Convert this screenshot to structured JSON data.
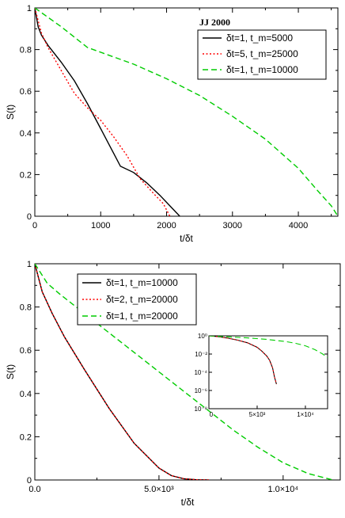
{
  "chart_data": [
    {
      "type": "line",
      "xlabel": "t/δt",
      "ylabel": "S(t)",
      "xlim": [
        0,
        4600
      ],
      "ylim": [
        0,
        1
      ],
      "x_ticks": [
        "0",
        "1000",
        "2000",
        "3000",
        "4000"
      ],
      "y_ticks": [
        "0",
        "0.2",
        "0.4",
        "0.6",
        "0.8",
        "1"
      ],
      "annotation": "JJ 2000",
      "legend_position": "top-right",
      "series": [
        {
          "name": "δt=1, t_m=5000",
          "color": "#000000",
          "style": "solid",
          "x": [
            0,
            50,
            100,
            200,
            400,
            600,
            800,
            1000,
            1100,
            1200,
            1300,
            1500,
            1700,
            1900,
            2050,
            2200
          ],
          "y": [
            1,
            0.91,
            0.87,
            0.82,
            0.74,
            0.65,
            0.54,
            0.42,
            0.36,
            0.3,
            0.24,
            0.21,
            0.16,
            0.1,
            0.05,
            0.0
          ]
        },
        {
          "name": "δt=5, t_m=25000",
          "color": "#ff0000",
          "style": "dotted",
          "x": [
            0,
            100,
            200,
            400,
            600,
            800,
            1000,
            1200,
            1400,
            1600,
            1800,
            1950,
            2050
          ],
          "y": [
            1,
            0.88,
            0.81,
            0.7,
            0.59,
            0.52,
            0.46,
            0.38,
            0.29,
            0.18,
            0.11,
            0.06,
            0.0
          ]
        },
        {
          "name": "δt=1, t_m=10000",
          "color": "#00cc00",
          "style": "dashed",
          "x": [
            0,
            400,
            800,
            1500,
            2000,
            2500,
            3000,
            3500,
            4000,
            4300,
            4500,
            4600
          ],
          "y": [
            1,
            0.91,
            0.81,
            0.73,
            0.66,
            0.58,
            0.48,
            0.37,
            0.23,
            0.12,
            0.05,
            0.0
          ]
        }
      ]
    },
    {
      "type": "line",
      "xlabel": "t/δt",
      "ylabel": "S(t)",
      "xlim": [
        0,
        12300
      ],
      "ylim": [
        0,
        1
      ],
      "x_ticks": [
        "0.0",
        "5.0×10³",
        "1.0×10⁴"
      ],
      "y_ticks": [
        "0",
        "0.2",
        "0.4",
        "0.6",
        "0.8",
        "1"
      ],
      "legend_position": "top-left",
      "series": [
        {
          "name": "δt=1, t_m=10000",
          "color": "#000000",
          "style": "solid",
          "x": [
            0,
            300,
            700,
            1200,
            2000,
            3000,
            4000,
            5000,
            5500,
            6000,
            6500,
            7000
          ],
          "y": [
            1,
            0.87,
            0.77,
            0.66,
            0.51,
            0.33,
            0.17,
            0.055,
            0.02,
            0.006,
            0.001,
            0.0
          ]
        },
        {
          "name": "δt=2, t_m=20000",
          "color": "#ff0000",
          "style": "dotted",
          "x": [
            0,
            300,
            700,
            1200,
            2000,
            3000,
            4000,
            5000,
            5500,
            6000,
            6500,
            7000
          ],
          "y": [
            1,
            0.87,
            0.77,
            0.66,
            0.51,
            0.33,
            0.17,
            0.055,
            0.02,
            0.006,
            0.001,
            0.0
          ]
        },
        {
          "name": "δt=1, t_m=20000",
          "color": "#00cc00",
          "style": "dashed",
          "x": [
            0,
            500,
            1000,
            2000,
            3000,
            4000,
            5000,
            6000,
            7000,
            8000,
            9000,
            10000,
            11000,
            12000
          ],
          "y": [
            1,
            0.91,
            0.86,
            0.77,
            0.68,
            0.59,
            0.5,
            0.41,
            0.32,
            0.23,
            0.15,
            0.08,
            0.03,
            0.0
          ]
        }
      ]
    },
    {
      "type": "line",
      "inset": true,
      "yscale": "log",
      "xlim": [
        0,
        12300
      ],
      "ylim_exponents": [
        -8,
        0
      ],
      "x_ticks": [
        "0",
        "5×10³",
        "1×10⁴"
      ],
      "y_ticks": [
        "10⁰",
        "10⁻²",
        "10⁻⁴",
        "10⁻⁶",
        "10⁻⁸"
      ],
      "series": [
        {
          "color": "#000000",
          "style": "solid",
          "x": [
            0,
            1000,
            2000,
            3000,
            4000,
            5000,
            5500,
            6000,
            6300,
            6600,
            6800,
            7000
          ],
          "y": [
            1,
            0.8,
            0.55,
            0.33,
            0.17,
            0.055,
            0.02,
            0.006,
            0.002,
            0.0003,
            3e-05,
            5e-06
          ]
        },
        {
          "color": "#ff0000",
          "style": "dotted",
          "x": [
            0,
            1000,
            2000,
            3000,
            4000,
            5000,
            5500,
            6000,
            6300,
            6600,
            6800,
            7000
          ],
          "y": [
            1,
            0.8,
            0.55,
            0.33,
            0.17,
            0.055,
            0.02,
            0.006,
            0.002,
            0.0003,
            3e-05,
            5e-06
          ]
        },
        {
          "color": "#00cc00",
          "style": "dashed",
          "x": [
            0,
            2000,
            4000,
            6000,
            8000,
            9000,
            10000,
            11000,
            11800,
            12300
          ],
          "y": [
            1,
            0.77,
            0.59,
            0.41,
            0.23,
            0.15,
            0.08,
            0.03,
            0.01,
            0.004
          ]
        }
      ]
    }
  ]
}
